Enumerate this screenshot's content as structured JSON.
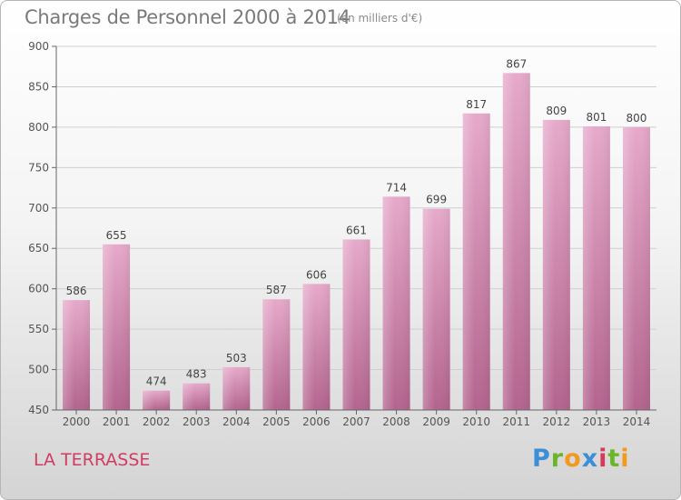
{
  "header": {
    "title": "Charges de Personnel 2000 à 2014",
    "unit_note": "(en milliers d'€)"
  },
  "footer": {
    "commune": "LA TERRASSE",
    "logo_letters": [
      {
        "ch": "P",
        "color": "#3a8fd6"
      },
      {
        "ch": "r",
        "color": "#6bb52b"
      },
      {
        "ch": "o",
        "color": "#f29a1f"
      },
      {
        "ch": "x",
        "color": "#3a8fd6"
      },
      {
        "ch": "i",
        "color": "#d63a5a"
      },
      {
        "ch": "t",
        "color": "#6bb52b"
      },
      {
        "ch": "i",
        "color": "#f29a1f"
      }
    ]
  },
  "chart_data": {
    "type": "bar",
    "title": "Charges de Personnel 2000 à 2014",
    "subtitle": "(en milliers d'€)",
    "xlabel": "",
    "ylabel": "",
    "categories": [
      "2000",
      "2001",
      "2002",
      "2003",
      "2004",
      "2005",
      "2006",
      "2007",
      "2008",
      "2009",
      "2010",
      "2011",
      "2012",
      "2013",
      "2014"
    ],
    "values": [
      586,
      655,
      474,
      483,
      503,
      587,
      606,
      661,
      714,
      699,
      817,
      867,
      809,
      801,
      800
    ],
    "ylim": [
      450,
      900
    ],
    "yticks": [
      450,
      500,
      550,
      600,
      650,
      700,
      750,
      800,
      850,
      900
    ],
    "grid": true,
    "bar_color": "#d98fb6"
  }
}
